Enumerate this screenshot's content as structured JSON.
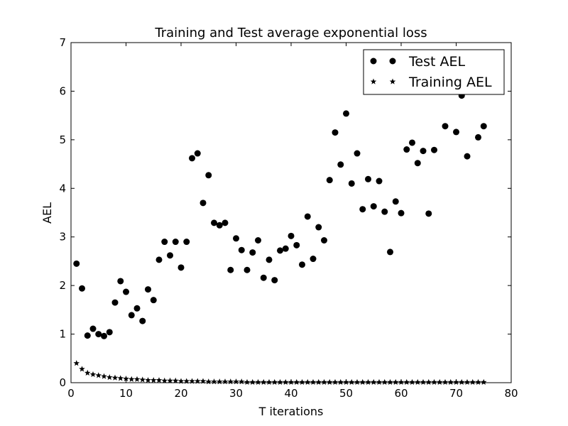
{
  "chart_data": {
    "type": "scatter",
    "title": "Training and Test average exponential loss",
    "xlabel": "T iterations",
    "ylabel": "AEL",
    "xlim": [
      0,
      80
    ],
    "ylim": [
      0,
      7
    ],
    "xticks": [
      0,
      10,
      20,
      30,
      40,
      50,
      60,
      70,
      80
    ],
    "yticks": [
      0,
      1,
      2,
      3,
      4,
      5,
      6,
      7
    ],
    "grid": false,
    "legend_position": "top-right",
    "series": [
      {
        "name": "Test AEL",
        "marker": "circle",
        "color": "#000000",
        "x": [
          1,
          2,
          3,
          4,
          5,
          6,
          7,
          8,
          9,
          10,
          11,
          12,
          13,
          14,
          15,
          16,
          17,
          18,
          19,
          20,
          21,
          22,
          23,
          24,
          25,
          26,
          27,
          28,
          29,
          30,
          31,
          32,
          33,
          34,
          35,
          36,
          37,
          38,
          39,
          40,
          41,
          42,
          43,
          44,
          45,
          46,
          47,
          48,
          49,
          50,
          51,
          52,
          53,
          54,
          55,
          56,
          57,
          58,
          59,
          60,
          61,
          62,
          63,
          64,
          65,
          66,
          68,
          70,
          71,
          72,
          74,
          75
        ],
        "y": [
          2.45,
          1.94,
          0.97,
          1.11,
          1.0,
          0.96,
          1.04,
          1.65,
          2.09,
          1.87,
          1.39,
          1.53,
          1.27,
          1.92,
          1.7,
          2.53,
          2.9,
          2.62,
          2.9,
          2.37,
          2.9,
          4.62,
          4.72,
          3.7,
          4.27,
          3.29,
          3.24,
          3.29,
          2.32,
          2.97,
          2.73,
          2.32,
          2.68,
          2.93,
          2.16,
          2.53,
          2.11,
          2.72,
          2.76,
          3.02,
          2.83,
          2.43,
          3.42,
          2.55,
          3.2,
          2.93,
          4.17,
          5.15,
          4.49,
          5.54,
          4.1,
          4.72,
          3.57,
          4.19,
          3.63,
          4.15,
          3.52,
          2.69,
          3.73,
          3.49,
          4.8,
          4.94,
          4.52,
          4.77,
          3.48,
          4.79,
          5.28,
          5.16,
          5.91,
          4.66,
          5.05,
          5.28
        ]
      },
      {
        "name": "Training AEL",
        "marker": "star",
        "color": "#000000",
        "x": [
          1,
          2,
          3,
          4,
          5,
          6,
          7,
          8,
          9,
          10,
          11,
          12,
          13,
          14,
          15,
          16,
          17,
          18,
          19,
          20,
          21,
          22,
          23,
          24,
          25,
          26,
          27,
          28,
          29,
          30,
          31,
          32,
          33,
          34,
          35,
          36,
          37,
          38,
          39,
          40,
          41,
          42,
          43,
          44,
          45,
          46,
          47,
          48,
          49,
          50,
          51,
          52,
          53,
          54,
          55,
          56,
          57,
          58,
          59,
          60,
          61,
          62,
          63,
          64,
          65,
          66,
          67,
          68,
          69,
          70,
          71,
          72,
          73,
          74,
          75
        ],
        "y": [
          0.4,
          0.28,
          0.2,
          0.17,
          0.15,
          0.13,
          0.11,
          0.1,
          0.09,
          0.08,
          0.07,
          0.07,
          0.06,
          0.05,
          0.05,
          0.05,
          0.04,
          0.04,
          0.04,
          0.03,
          0.03,
          0.03,
          0.03,
          0.03,
          0.02,
          0.02,
          0.02,
          0.02,
          0.02,
          0.02,
          0.02,
          0.01,
          0.01,
          0.01,
          0.01,
          0.01,
          0.01,
          0.01,
          0.01,
          0.01,
          0.01,
          0.01,
          0.01,
          0.01,
          0.01,
          0.01,
          0.01,
          0.01,
          0.01,
          0.01,
          0.01,
          0.01,
          0.01,
          0.01,
          0.01,
          0.01,
          0.01,
          0.01,
          0.01,
          0.01,
          0.01,
          0.01,
          0.01,
          0.01,
          0.01,
          0.01,
          0.01,
          0.01,
          0.01,
          0.01,
          0.01,
          0.01,
          0.01,
          0.01,
          0.01
        ]
      }
    ]
  }
}
